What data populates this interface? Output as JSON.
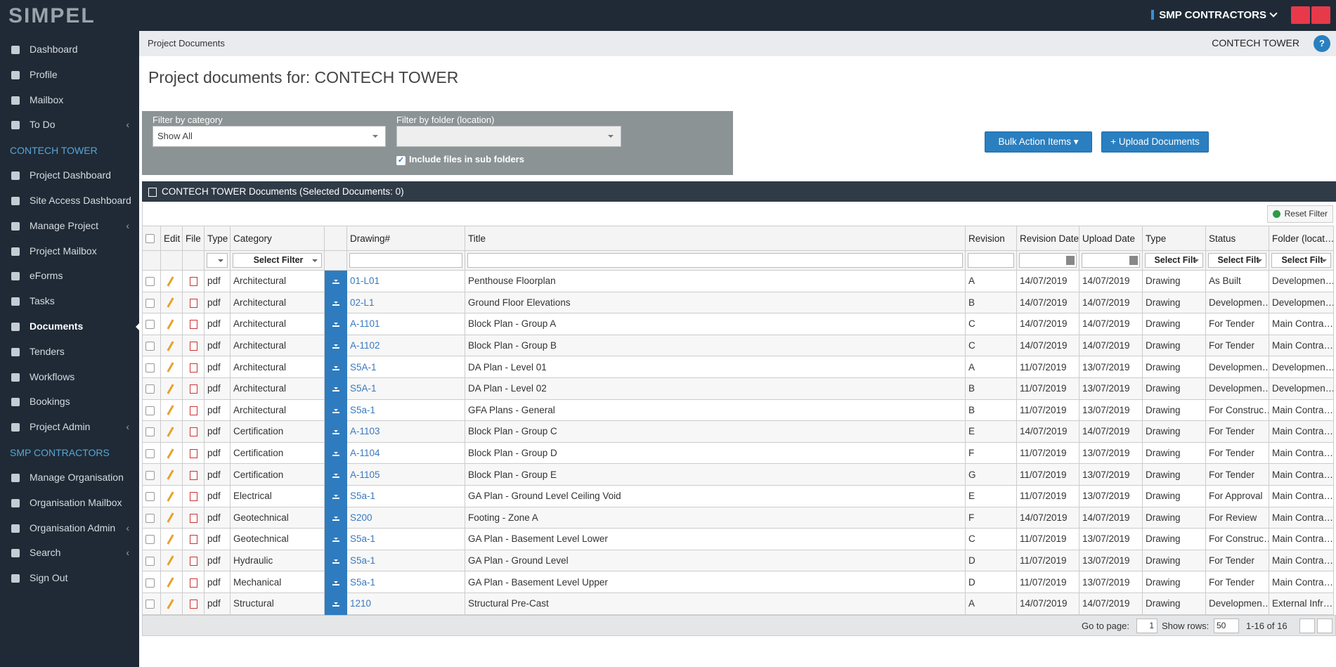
{
  "header": {
    "logo": "SIMPEL",
    "organisation": "SMP CONTRACTORS"
  },
  "sidebar": {
    "groups": [
      {
        "items": [
          {
            "label": "Dashboard",
            "submenu": false
          },
          {
            "label": "Profile",
            "submenu": false
          },
          {
            "label": "Mailbox",
            "submenu": false
          },
          {
            "label": "To Do",
            "submenu": true
          }
        ]
      },
      {
        "heading": "CONTECH TOWER",
        "items": [
          {
            "label": "Project Dashboard",
            "submenu": false
          },
          {
            "label": "Site Access Dashboard",
            "submenu": false
          },
          {
            "label": "Manage Project",
            "submenu": true
          },
          {
            "label": "Project Mailbox",
            "submenu": false
          },
          {
            "label": "eForms",
            "submenu": false
          },
          {
            "label": "Tasks",
            "submenu": false
          },
          {
            "label": "Documents",
            "submenu": false,
            "active": true
          },
          {
            "label": "Tenders",
            "submenu": false
          },
          {
            "label": "Workflows",
            "submenu": false
          },
          {
            "label": "Bookings",
            "submenu": false
          },
          {
            "label": "Project Admin",
            "submenu": true
          }
        ]
      },
      {
        "heading": "SMP CONTRACTORS",
        "items": [
          {
            "label": "Manage Organisation",
            "submenu": false
          },
          {
            "label": "Organisation Mailbox",
            "submenu": false
          },
          {
            "label": "Organisation Admin",
            "submenu": true
          },
          {
            "label": "Search",
            "submenu": true
          },
          {
            "label": "Sign Out",
            "submenu": false
          }
        ]
      }
    ]
  },
  "breadcrumb": {
    "page": "Project Documents",
    "project": "CONTECH TOWER"
  },
  "page_title": "Project documents for: CONTECH TOWER",
  "filters": {
    "category_label": "Filter by category",
    "category_value": "Show All",
    "folder_label": "Filter by folder (location)",
    "subfolders_label": "Include files in sub folders"
  },
  "buttons": {
    "bulk": "Bulk Action Items",
    "upload": "Upload Documents"
  },
  "table": {
    "caption": "CONTECH TOWER Documents (Selected Documents: 0)",
    "reset": "Reset Filter",
    "columns": [
      "Edit",
      "File",
      "Type",
      "Category",
      "Drawing#",
      "Title",
      "Revision",
      "Revision Date",
      "Upload Date",
      "Type",
      "Status",
      "Folder (locat…"
    ],
    "filter_select": {
      "category": "Select Filter",
      "type": "Select Filt",
      "status": "Select Filt",
      "folder": "Select Filt"
    },
    "rows": [
      [
        "pdf",
        "Architectural",
        "01-L01",
        "Penthouse Floorplan",
        "A",
        "14/07/2019",
        "14/07/2019",
        "Drawing",
        "As Built",
        "Developmen…"
      ],
      [
        "pdf",
        "Architectural",
        "02-L1",
        "Ground Floor Elevations",
        "B",
        "14/07/2019",
        "14/07/2019",
        "Drawing",
        "Developmen…",
        "Developmen…"
      ],
      [
        "pdf",
        "Architectural",
        "A-1101",
        "Block Plan - Group A",
        "C",
        "14/07/2019",
        "14/07/2019",
        "Drawing",
        "For Tender",
        "Main Contra…"
      ],
      [
        "pdf",
        "Architectural",
        "A-1102",
        "Block Plan - Group B",
        "C",
        "14/07/2019",
        "14/07/2019",
        "Drawing",
        "For Tender",
        "Main Contra…"
      ],
      [
        "pdf",
        "Architectural",
        "S5A-1",
        "DA Plan - Level 01",
        "A",
        "11/07/2019",
        "13/07/2019",
        "Drawing",
        "Developmen…",
        "Developmen…"
      ],
      [
        "pdf",
        "Architectural",
        "S5A-1",
        "DA Plan - Level 02",
        "B",
        "11/07/2019",
        "13/07/2019",
        "Drawing",
        "Developmen…",
        "Developmen…"
      ],
      [
        "pdf",
        "Architectural",
        "S5a-1",
        "GFA Plans - General",
        "B",
        "11/07/2019",
        "13/07/2019",
        "Drawing",
        "For Construc…",
        "Main Contra…"
      ],
      [
        "pdf",
        "Certification",
        "A-1103",
        "Block Plan - Group C",
        "E",
        "14/07/2019",
        "14/07/2019",
        "Drawing",
        "For Tender",
        "Main Contra…"
      ],
      [
        "pdf",
        "Certification",
        "A-1104",
        "Block Plan - Group D",
        "F",
        "11/07/2019",
        "13/07/2019",
        "Drawing",
        "For Tender",
        "Main Contra…"
      ],
      [
        "pdf",
        "Certification",
        "A-1105",
        "Block Plan - Group E",
        "G",
        "11/07/2019",
        "13/07/2019",
        "Drawing",
        "For Tender",
        "Main Contra…"
      ],
      [
        "pdf",
        "Electrical",
        "S5a-1",
        "GA Plan - Ground Level Ceiling Void",
        "E",
        "11/07/2019",
        "13/07/2019",
        "Drawing",
        "For Approval",
        "Main Contra…"
      ],
      [
        "pdf",
        "Geotechnical",
        "S200",
        "Footing - Zone A",
        "F",
        "14/07/2019",
        "14/07/2019",
        "Drawing",
        "For Review",
        "Main Contra…"
      ],
      [
        "pdf",
        "Geotechnical",
        "S5a-1",
        "GA Plan - Basement Level Lower",
        "C",
        "11/07/2019",
        "13/07/2019",
        "Drawing",
        "For Construc…",
        "Main Contra…"
      ],
      [
        "pdf",
        "Hydraulic",
        "S5a-1",
        "GA Plan - Ground Level",
        "D",
        "11/07/2019",
        "13/07/2019",
        "Drawing",
        "For Tender",
        "Main Contra…"
      ],
      [
        "pdf",
        "Mechanical",
        "S5a-1",
        "GA Plan - Basement Level Upper",
        "D",
        "11/07/2019",
        "13/07/2019",
        "Drawing",
        "For Tender",
        "Main Contra…"
      ],
      [
        "pdf",
        "Structural",
        "1210",
        "Structural Pre-Cast",
        "A",
        "14/07/2019",
        "14/07/2019",
        "Drawing",
        "Developmen…",
        "External Infr…"
      ]
    ],
    "pager": {
      "goto_label": "Go to page:",
      "page": "1",
      "rows_label": "Show rows:",
      "rows": "50",
      "range": "1-16 of 16"
    }
  }
}
